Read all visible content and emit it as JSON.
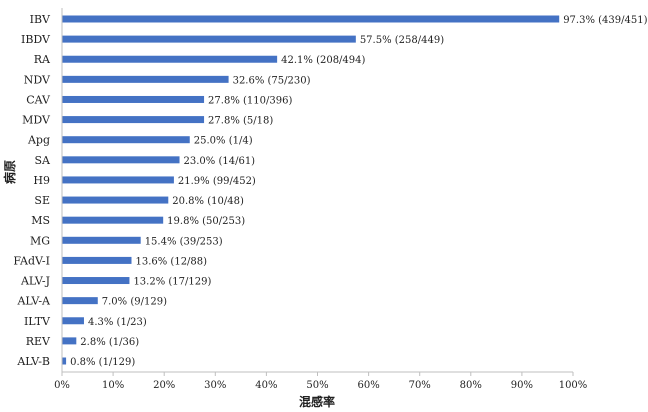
{
  "chart_data": {
    "type": "bar",
    "orientation": "horizontal",
    "categories": [
      "IBV",
      "IBDV",
      "RA",
      "NDV",
      "CAV",
      "MDV",
      "Apg",
      "SA",
      "H9",
      "SE",
      "MS",
      "MG",
      "FAdV-I",
      "ALV-J",
      "ALV-A",
      "ILTV",
      "REV",
      "ALV-B"
    ],
    "values": [
      97.3,
      57.5,
      42.1,
      32.6,
      27.8,
      27.8,
      25.0,
      23.0,
      21.9,
      20.8,
      19.8,
      15.4,
      13.6,
      13.2,
      7.0,
      4.3,
      2.8,
      0.8
    ],
    "data_labels": [
      "97.3% (439/451)",
      "57.5% (258/449)",
      "42.1% (208/494)",
      "32.6% (75/230)",
      "27.8% (110/396)",
      "27.8% (5/18)",
      "25.0% (1/4)",
      "23.0% (14/61)",
      "21.9% (99/452)",
      "20.8% (10/48)",
      "19.8% (50/253)",
      "15.4% (39/253)",
      "13.6% (12/88)",
      "13.2% (17/129)",
      "7.0% (9/129)",
      "4.3% (1/23)",
      "2.8% (1/36)",
      "0.8% (1/129)"
    ],
    "xlabel": "混感率",
    "ylabel": "病原",
    "xlim": [
      0,
      100
    ],
    "x_ticks": [
      "0%",
      "10%",
      "20%",
      "30%",
      "40%",
      "50%",
      "60%",
      "70%",
      "80%",
      "90%",
      "100%"
    ],
    "grid": false,
    "bar_color": "#4472C4"
  }
}
